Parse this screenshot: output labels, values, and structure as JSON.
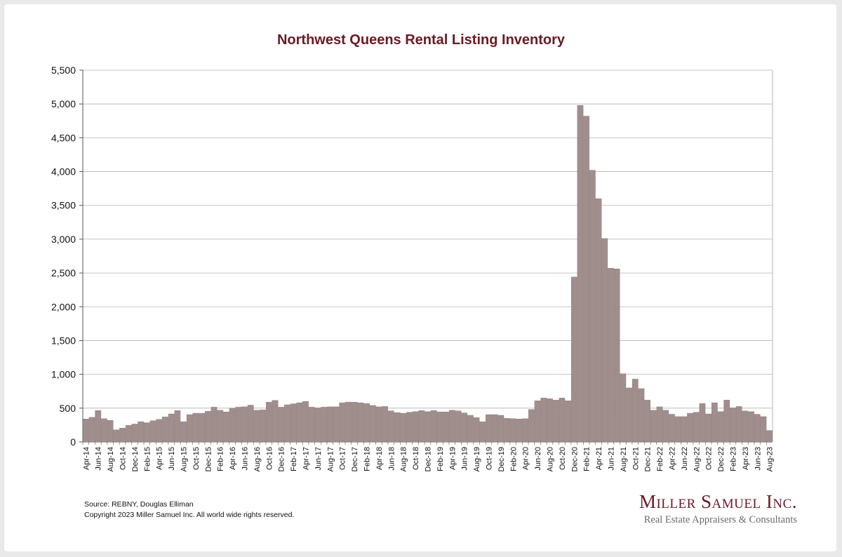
{
  "chart_data": {
    "type": "bar",
    "title": "Northwest Queens Rental Listing Inventory",
    "xlabel": "",
    "ylabel": "",
    "ylim": [
      0,
      5500
    ],
    "yticks": [
      "0",
      "500",
      "1,000",
      "1,500",
      "2,000",
      "2,500",
      "3,000",
      "3,500",
      "4,000",
      "4,500",
      "5,000",
      "5,500"
    ],
    "grid": true,
    "bar_color": "#a08e8d",
    "categories": [
      "Apr-14",
      "May-14",
      "Jun-14",
      "Jul-14",
      "Aug-14",
      "Sep-14",
      "Oct-14",
      "Nov-14",
      "Dec-14",
      "Jan-15",
      "Feb-15",
      "Mar-15",
      "Apr-15",
      "May-15",
      "Jun-15",
      "Jul-15",
      "Aug-15",
      "Sep-15",
      "Oct-15",
      "Nov-15",
      "Dec-15",
      "Jan-16",
      "Feb-16",
      "Mar-16",
      "Apr-16",
      "May-16",
      "Jun-16",
      "Jul-16",
      "Aug-16",
      "Sep-16",
      "Oct-16",
      "Nov-16",
      "Dec-16",
      "Jan-17",
      "Feb-17",
      "Mar-17",
      "Apr-17",
      "May-17",
      "Jun-17",
      "Jul-17",
      "Aug-17",
      "Sep-17",
      "Oct-17",
      "Nov-17",
      "Dec-17",
      "Jan-18",
      "Feb-18",
      "Mar-18",
      "Apr-18",
      "May-18",
      "Jun-18",
      "Jul-18",
      "Aug-18",
      "Sep-18",
      "Oct-18",
      "Nov-18",
      "Dec-18",
      "Jan-19",
      "Feb-19",
      "Mar-19",
      "Apr-19",
      "May-19",
      "Jun-19",
      "Jul-19",
      "Aug-19",
      "Sep-19",
      "Oct-19",
      "Nov-19",
      "Dec-19",
      "Jan-20",
      "Feb-20",
      "Mar-20",
      "Apr-20",
      "May-20",
      "Jun-20",
      "Jul-20",
      "Aug-20",
      "Sep-20",
      "Oct-20",
      "Nov-20",
      "Dec-20",
      "Jan-21",
      "Feb-21",
      "Mar-21",
      "Apr-21",
      "May-21",
      "Jun-21",
      "Jul-21",
      "Aug-21",
      "Sep-21",
      "Oct-21",
      "Nov-21",
      "Dec-21",
      "Jan-22",
      "Feb-22",
      "Mar-22",
      "Apr-22",
      "May-22",
      "Jun-22",
      "Jul-22",
      "Aug-22",
      "Sep-22",
      "Oct-22",
      "Nov-22",
      "Dec-22",
      "Jan-23",
      "Feb-23",
      "Mar-23",
      "Apr-23",
      "May-23",
      "Jun-23",
      "Jul-23",
      "Aug-23"
    ],
    "tick_labels_shown_every": 2,
    "values": [
      340,
      365,
      465,
      345,
      320,
      180,
      205,
      245,
      265,
      300,
      285,
      315,
      335,
      370,
      415,
      465,
      300,
      405,
      425,
      425,
      455,
      515,
      470,
      445,
      500,
      515,
      520,
      545,
      470,
      475,
      590,
      615,
      515,
      550,
      565,
      580,
      600,
      515,
      505,
      515,
      520,
      520,
      580,
      590,
      590,
      580,
      570,
      540,
      520,
      525,
      460,
      435,
      425,
      440,
      450,
      465,
      450,
      465,
      445,
      445,
      470,
      460,
      430,
      395,
      360,
      300,
      405,
      405,
      395,
      350,
      345,
      340,
      345,
      480,
      610,
      650,
      640,
      620,
      650,
      610,
      2440,
      4980,
      4820,
      4020,
      3600,
      3010,
      2570,
      2560,
      1010,
      800,
      930,
      790,
      620,
      470,
      520,
      470,
      410,
      375,
      375,
      425,
      440,
      570,
      415,
      580,
      450,
      620,
      505,
      525,
      460,
      450,
      410,
      375,
      170
    ]
  },
  "footer": {
    "source": "Source: REBNY, Douglas Elliman",
    "copyright": "Copyright 2023 Miller Samuel Inc.  All world wide rights reserved."
  },
  "logo": {
    "name": "Miller Samuel Inc.",
    "tagline": "Real Estate Appraisers & Consultants"
  }
}
